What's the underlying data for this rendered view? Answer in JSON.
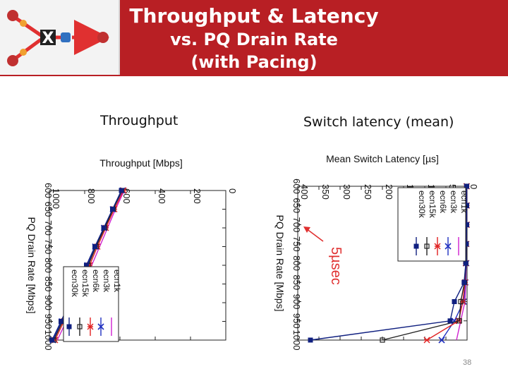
{
  "slide": {
    "title_line1": "Throughput & Latency",
    "title_line2": "vs. PQ Drain Rate",
    "title_line3": "(with Pacing)",
    "left_label": "Throughput",
    "right_label": "Switch latency (mean)",
    "annotation": "5µsec",
    "slide_number": "38",
    "colors": {
      "header": "#b81f24",
      "arrow": "#e03030"
    }
  },
  "chart_data": [
    {
      "type": "line",
      "title": "Throughput [Mbps]",
      "xlabel": "PQ Drain Rate [Mbps]",
      "ylabel": "",
      "x": [
        600,
        650,
        700,
        750,
        800,
        850,
        900,
        950,
        1000
      ],
      "xlim": [
        600,
        1000
      ],
      "ylim": [
        0,
        1000
      ],
      "x_ticks": [
        "600",
        "650",
        "700",
        "750",
        "800",
        "850",
        "900",
        "950",
        "1000"
      ],
      "y_ticks": [
        "0",
        "200",
        "400",
        "600",
        "800",
        "1000"
      ],
      "legend_position": "bottom-right",
      "series": [
        {
          "name": "ecn1k",
          "color": "#d020d0",
          "marker": "none",
          "values": [
            575,
            625,
            670,
            715,
            760,
            810,
            855,
            905,
            955
          ]
        },
        {
          "name": "ecn3k",
          "color": "#2030c0",
          "marker": "x",
          "values": [
            585,
            640,
            690,
            740,
            785,
            835,
            880,
            930,
            980
          ]
        },
        {
          "name": "ecn6k",
          "color": "#e02020",
          "marker": "star",
          "values": [
            580,
            632,
            680,
            728,
            772,
            820,
            868,
            918,
            968
          ]
        },
        {
          "name": "ecn15k",
          "color": "#222222",
          "marker": "square",
          "values": [
            590,
            638,
            686,
            735,
            780,
            828,
            875,
            925,
            975
          ]
        },
        {
          "name": "ecn30k",
          "color": "#102080",
          "marker": "filled",
          "values": [
            592,
            642,
            692,
            742,
            790,
            838,
            886,
            934,
            985
          ]
        }
      ]
    },
    {
      "type": "line",
      "title": "Mean Switch Latency [µs]",
      "xlabel": "PQ Drain Rate [Mbps]",
      "ylabel": "",
      "x": [
        600,
        650,
        700,
        750,
        800,
        850,
        900,
        950,
        1000
      ],
      "xlim": [
        600,
        1000
      ],
      "ylim": [
        0,
        400
      ],
      "x_ticks": [
        "600",
        "650",
        "700",
        "750",
        "800",
        "850",
        "900",
        "950",
        "1000"
      ],
      "y_ticks": [
        "0",
        "50",
        "100",
        "150",
        "200",
        "250",
        "300",
        "350",
        "400"
      ],
      "legend_position": "top-right",
      "series": [
        {
          "name": "ecn1k",
          "color": "#d020d0",
          "marker": "none",
          "values": [
            1,
            1,
            1,
            2,
            2,
            3,
            5,
            15,
            25
          ]
        },
        {
          "name": "ecn3k",
          "color": "#2030c0",
          "marker": "x",
          "values": [
            1,
            1,
            1,
            2,
            2,
            4,
            8,
            30,
            60
          ]
        },
        {
          "name": "ecn6k",
          "color": "#e02020",
          "marker": "star",
          "values": [
            1,
            1,
            1,
            2,
            3,
            5,
            10,
            20,
            95
          ]
        },
        {
          "name": "ecn15k",
          "color": "#222222",
          "marker": "square",
          "values": [
            1,
            1,
            1,
            2,
            3,
            6,
            15,
            18,
            200
          ]
        },
        {
          "name": "ecn30k",
          "color": "#102080",
          "marker": "filled",
          "values": [
            1,
            1,
            1,
            2,
            3,
            7,
            30,
            40,
            370
          ]
        }
      ]
    }
  ]
}
